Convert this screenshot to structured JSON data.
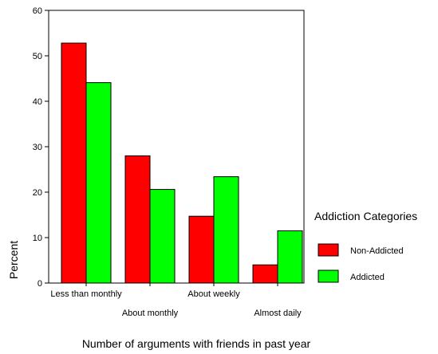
{
  "chart_data": {
    "type": "bar",
    "title": "",
    "xlabel": "Number of arguments with friends in past year",
    "ylabel": "Percent",
    "ylim": [
      0,
      60
    ],
    "yticks": [
      0,
      10,
      20,
      30,
      40,
      50,
      60
    ],
    "categories": [
      "Less than monthly",
      "About monthly",
      "About weekly",
      "Almost daily"
    ],
    "series": [
      {
        "name": "Non-Addicted",
        "color": "#ff0000",
        "values": [
          52.8,
          28.0,
          14.7,
          4.0
        ]
      },
      {
        "name": "Addicted",
        "color": "#00ff00",
        "values": [
          44.1,
          20.6,
          23.4,
          11.5
        ]
      }
    ],
    "legend": {
      "title": "Addiction Categories",
      "position": "right"
    },
    "grid": false
  }
}
